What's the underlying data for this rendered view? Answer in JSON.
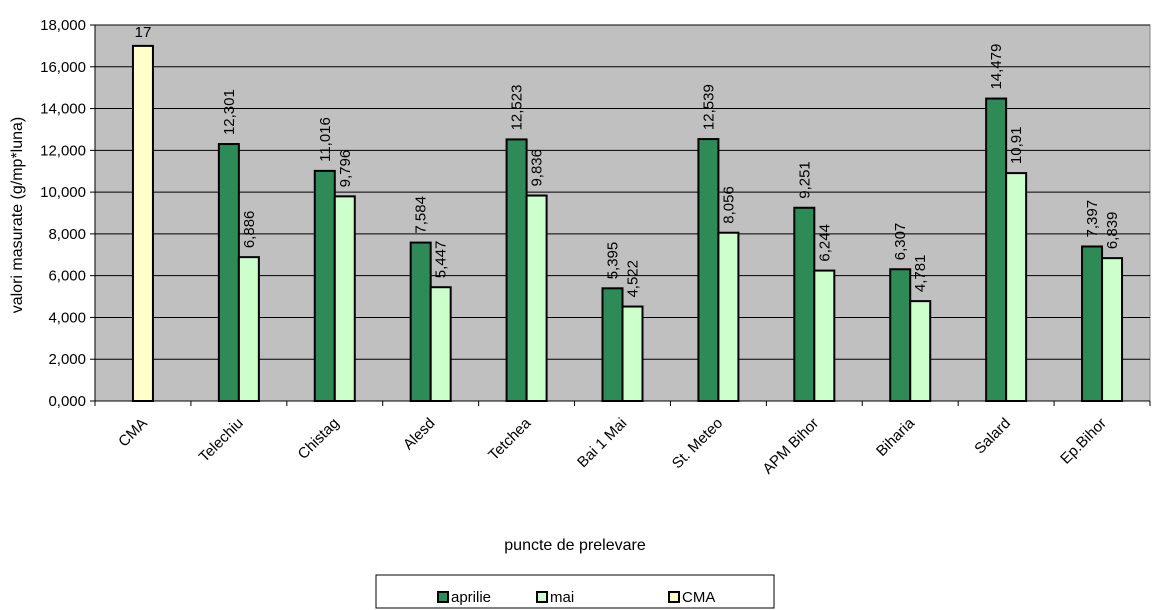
{
  "chart_data": {
    "type": "bar",
    "title": "",
    "xlabel": "puncte de prelevare",
    "ylabel": "valori masurate (g/mp*luna)",
    "ylim": [
      0,
      18
    ],
    "yticks": [
      {
        "value": 0,
        "label": "0,000"
      },
      {
        "value": 2,
        "label": "2,000"
      },
      {
        "value": 4,
        "label": "4,000"
      },
      {
        "value": 6,
        "label": "6,000"
      },
      {
        "value": 8,
        "label": "8,000"
      },
      {
        "value": 10,
        "label": "10,000"
      },
      {
        "value": 12,
        "label": "12,000"
      },
      {
        "value": 14,
        "label": "14,000"
      },
      {
        "value": 16,
        "label": "16,000"
      },
      {
        "value": 18,
        "label": "18,000"
      }
    ],
    "categories": [
      "CMA",
      "Telechiu",
      "Chistag",
      "Alesd",
      "Tetchea",
      "Bai 1 Mai",
      "St. Meteo",
      "APM Bihor",
      "Biharia",
      "Salard",
      "Ep.Bihor"
    ],
    "series": [
      {
        "name": "aprilie",
        "color": "#2e8b57",
        "values": [
          null,
          12.301,
          11.016,
          7.584,
          12.523,
          5.395,
          12.539,
          9.251,
          6.307,
          14.479,
          7.397
        ],
        "labels": [
          null,
          "12,301",
          "11,016",
          "7,584",
          "12,523",
          "5,395",
          "12,539",
          "9,251",
          "6,307",
          "14,479",
          "7,397"
        ]
      },
      {
        "name": "mai",
        "color": "#ccffcc",
        "values": [
          null,
          6.886,
          9.796,
          5.447,
          9.836,
          4.522,
          8.056,
          6.244,
          4.781,
          10.91,
          6.839
        ],
        "labels": [
          null,
          "6,886",
          "9,796",
          "5,447",
          "9,836",
          "4,522",
          "8,056",
          "6,244",
          "4,781",
          "10,91",
          "6,839"
        ]
      },
      {
        "name": "CMA",
        "color": "#ffffcc",
        "values": [
          17,
          null,
          null,
          null,
          null,
          null,
          null,
          null,
          null,
          null,
          null
        ],
        "labels": [
          "17",
          null,
          null,
          null,
          null,
          null,
          null,
          null,
          null,
          null,
          null
        ]
      }
    ],
    "grid": true,
    "plot_background": "#c0c0c0",
    "legend_position": "bottom"
  }
}
